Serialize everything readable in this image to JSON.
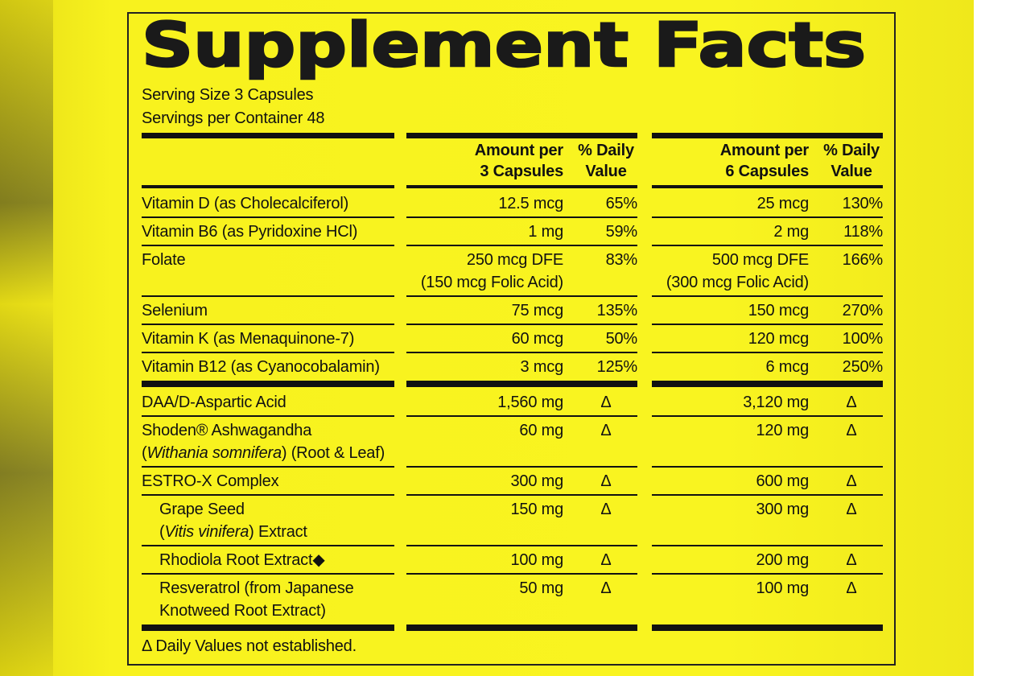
{
  "header": {
    "title": "Supplement Facts",
    "serving_size": "Serving Size 3 Capsules",
    "servings_per_container": "Servings per Container 48"
  },
  "columns": [
    {
      "amount": [
        "Amount per",
        "3 Capsules"
      ],
      "daily_value": [
        "% Daily",
        "Value"
      ]
    },
    {
      "amount": [
        "Amount per",
        "6 Capsules"
      ],
      "daily_value": [
        "% Daily",
        "Value"
      ]
    }
  ],
  "sections": [
    {
      "rows": [
        {
          "name": [
            [
              "Vitamin D (as Cholecalciferol)"
            ]
          ],
          "amounts": [
            {
              "amount": [
                "12.5 mcg"
              ],
              "daily_value": "65%"
            },
            {
              "amount": [
                "25 mcg"
              ],
              "daily_value": "130%"
            }
          ]
        },
        {
          "name": [
            [
              "Vitamin B6 (as Pyridoxine HCl)"
            ]
          ],
          "amounts": [
            {
              "amount": [
                "1 mg"
              ],
              "daily_value": "59%"
            },
            {
              "amount": [
                "2 mg"
              ],
              "daily_value": "118%"
            }
          ]
        },
        {
          "name": [
            [
              "Folate"
            ]
          ],
          "amounts": [
            {
              "amount": [
                "250 mcg DFE",
                "(150 mcg Folic Acid)"
              ],
              "daily_value": "83%"
            },
            {
              "amount": [
                "500 mcg DFE",
                "(300 mcg Folic Acid)"
              ],
              "daily_value": "166%"
            }
          ]
        },
        {
          "name": [
            [
              "Selenium"
            ]
          ],
          "amounts": [
            {
              "amount": [
                "75 mcg"
              ],
              "daily_value": "135%"
            },
            {
              "amount": [
                "150 mcg"
              ],
              "daily_value": "270%"
            }
          ]
        },
        {
          "name": [
            [
              "Vitamin K (as Menaquinone-7)"
            ]
          ],
          "amounts": [
            {
              "amount": [
                "60 mcg"
              ],
              "daily_value": "50%"
            },
            {
              "amount": [
                "120 mcg"
              ],
              "daily_value": "100%"
            }
          ]
        },
        {
          "name": [
            [
              "Vitamin B12 (as Cyanocobalamin)"
            ]
          ],
          "amounts": [
            {
              "amount": [
                "3 mcg"
              ],
              "daily_value": "125%"
            },
            {
              "amount": [
                "6 mcg"
              ],
              "daily_value": "250%"
            }
          ]
        }
      ]
    },
    {
      "rows": [
        {
          "name": [
            [
              "DAA/D-Aspartic Acid"
            ]
          ],
          "amounts": [
            {
              "amount": [
                "1,560 mg"
              ],
              "daily_value": "Δ"
            },
            {
              "amount": [
                "3,120 mg"
              ],
              "daily_value": "Δ"
            }
          ]
        },
        {
          "name": [
            [
              "Shoden® Ashwagandha"
            ],
            [
              "(",
              {
                "text": "Withania somnifera",
                "italic": true
              },
              ") (Root & Leaf)"
            ]
          ],
          "amounts": [
            {
              "amount": [
                "60 mg"
              ],
              "daily_value": "Δ"
            },
            {
              "amount": [
                "120 mg"
              ],
              "daily_value": "Δ"
            }
          ]
        },
        {
          "name": [
            [
              "ESTRO-X Complex"
            ]
          ],
          "amounts": [
            {
              "amount": [
                "300 mg"
              ],
              "daily_value": "Δ"
            },
            {
              "amount": [
                "600 mg"
              ],
              "daily_value": "Δ"
            }
          ]
        },
        {
          "name": [
            [
              "Grape Seed"
            ],
            [
              "(",
              {
                "text": "Vitis vinifera",
                "italic": true
              },
              ") Extract"
            ]
          ],
          "indent": true,
          "amounts": [
            {
              "amount": [
                "150 mg"
              ],
              "daily_value": "Δ"
            },
            {
              "amount": [
                "300 mg"
              ],
              "daily_value": "Δ"
            }
          ]
        },
        {
          "name": [
            [
              "Rhodiola Root Extract◆"
            ]
          ],
          "indent": true,
          "amounts": [
            {
              "amount": [
                "100 mg"
              ],
              "daily_value": "Δ"
            },
            {
              "amount": [
                "200 mg"
              ],
              "daily_value": "Δ"
            }
          ]
        },
        {
          "name": [
            [
              "Resveratrol (from Japanese"
            ],
            [
              "Knotweed Root Extract)"
            ]
          ],
          "indent": true,
          "amounts": [
            {
              "amount": [
                "50 mg"
              ],
              "daily_value": "Δ"
            },
            {
              "amount": [
                "100 mg"
              ],
              "daily_value": "Δ"
            }
          ]
        }
      ]
    }
  ],
  "footnote": "Δ Daily Values not established."
}
